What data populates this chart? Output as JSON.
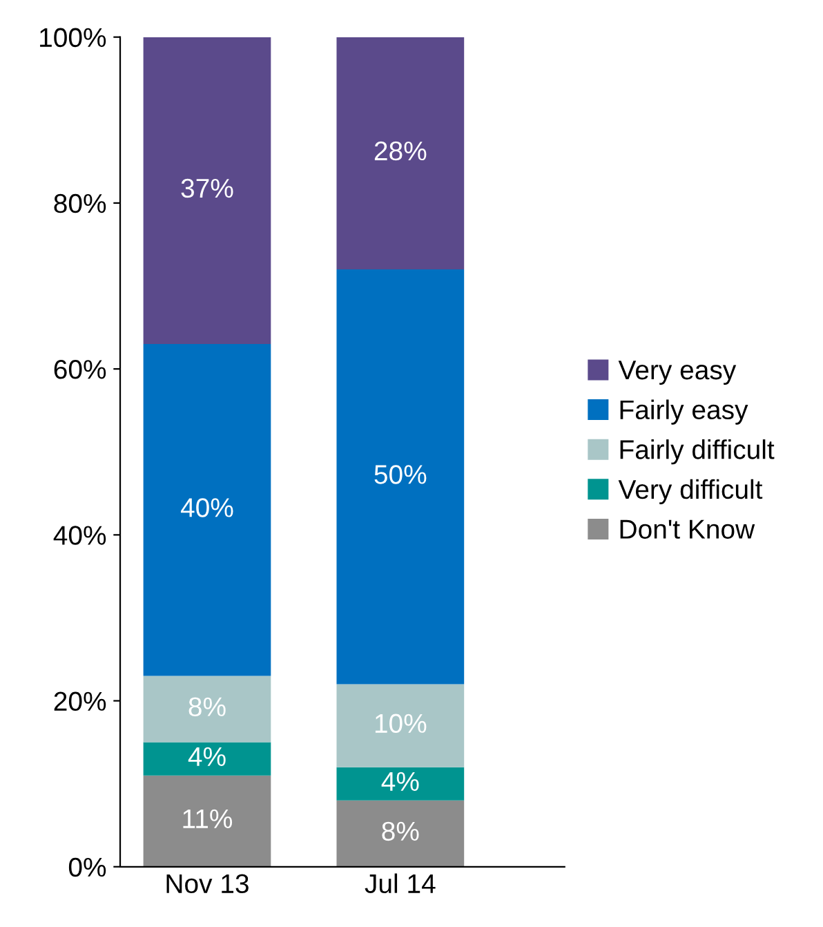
{
  "chart_data": {
    "type": "bar",
    "stacked": true,
    "categories": [
      "Nov 13",
      "Jul 14"
    ],
    "series": [
      {
        "name": "Don't Know",
        "color": "#8c8c8c",
        "values": [
          11,
          8
        ],
        "value_labels": [
          "11%",
          "8%"
        ]
      },
      {
        "name": "Very difficult",
        "color": "#009490",
        "values": [
          4,
          4
        ],
        "value_labels": [
          "4%",
          "4%"
        ]
      },
      {
        "name": "Fairly difficult",
        "color": "#a9c6c7",
        "values": [
          8,
          10
        ],
        "value_labels": [
          "8%",
          "10%"
        ]
      },
      {
        "name": "Fairly easy",
        "color": "#0070c0",
        "values": [
          40,
          50
        ],
        "value_labels": [
          "40%",
          "50%"
        ]
      },
      {
        "name": "Very easy",
        "color": "#5b4a8b",
        "values": [
          37,
          28
        ],
        "value_labels": [
          "37%",
          "28%"
        ]
      }
    ],
    "ylim": [
      0,
      100
    ],
    "yticks": [
      {
        "value": 0,
        "label": "0%"
      },
      {
        "value": 20,
        "label": "20%"
      },
      {
        "value": 40,
        "label": "40%"
      },
      {
        "value": 60,
        "label": "60%"
      },
      {
        "value": 80,
        "label": "80%"
      },
      {
        "value": 100,
        "label": "100%"
      }
    ],
    "grid": false,
    "legend": "right"
  }
}
